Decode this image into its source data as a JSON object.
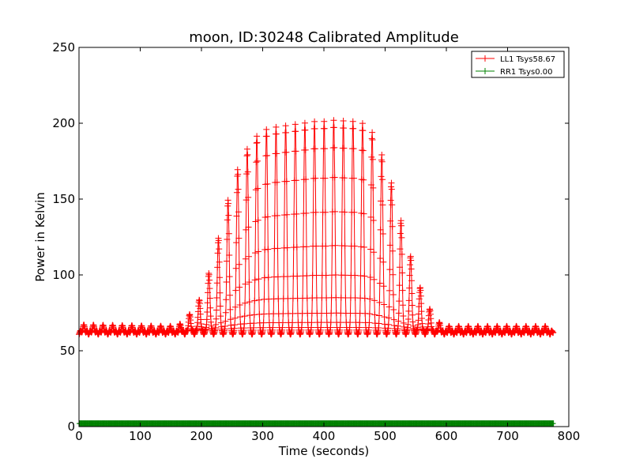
{
  "chart_data": {
    "type": "line",
    "title": "moon, ID:30248 Calibrated Amplitude",
    "xlabel": "Time (seconds)",
    "ylabel": "Power in Kelvin",
    "xlim": [
      0,
      800
    ],
    "ylim": [
      0,
      250
    ],
    "xticks": [
      "0",
      "100",
      "200",
      "300",
      "400",
      "500",
      "600",
      "700",
      "800"
    ],
    "yticks": [
      "0",
      "50",
      "100",
      "150",
      "200",
      "250"
    ],
    "grid": false,
    "legend_position": "top-right",
    "series": [
      {
        "name": "LL1 Tsys58.67",
        "color": "#ff0000",
        "marker": "plus",
        "baseline": 62,
        "x_range": [
          0,
          775
        ],
        "scan_period_seconds": 15.7,
        "peaks": [
          {
            "x": 0,
            "y": 66
          },
          {
            "x": 160,
            "y": 65
          },
          {
            "x": 176,
            "y": 70
          },
          {
            "x": 196,
            "y": 82
          },
          {
            "x": 213,
            "y": 101
          },
          {
            "x": 231,
            "y": 128
          },
          {
            "x": 247,
            "y": 154
          },
          {
            "x": 264,
            "y": 174
          },
          {
            "x": 282,
            "y": 187
          },
          {
            "x": 300,
            "y": 194
          },
          {
            "x": 317,
            "y": 196
          },
          {
            "x": 334,
            "y": 197
          },
          {
            "x": 352,
            "y": 198
          },
          {
            "x": 370,
            "y": 199
          },
          {
            "x": 386,
            "y": 200
          },
          {
            "x": 403,
            "y": 200
          },
          {
            "x": 421,
            "y": 201
          },
          {
            "x": 438,
            "y": 200
          },
          {
            "x": 455,
            "y": 200
          },
          {
            "x": 474,
            "y": 197
          },
          {
            "x": 490,
            "y": 183
          },
          {
            "x": 508,
            "y": 163
          },
          {
            "x": 525,
            "y": 136
          },
          {
            "x": 543,
            "y": 109
          },
          {
            "x": 560,
            "y": 87
          },
          {
            "x": 577,
            "y": 73
          },
          {
            "x": 594,
            "y": 65
          },
          {
            "x": 770,
            "y": 65
          }
        ]
      },
      {
        "name": "RR1 Tsys0.00",
        "color": "#008000",
        "marker": "plus",
        "values_constant": 2,
        "x_range": [
          0,
          775
        ]
      }
    ]
  }
}
